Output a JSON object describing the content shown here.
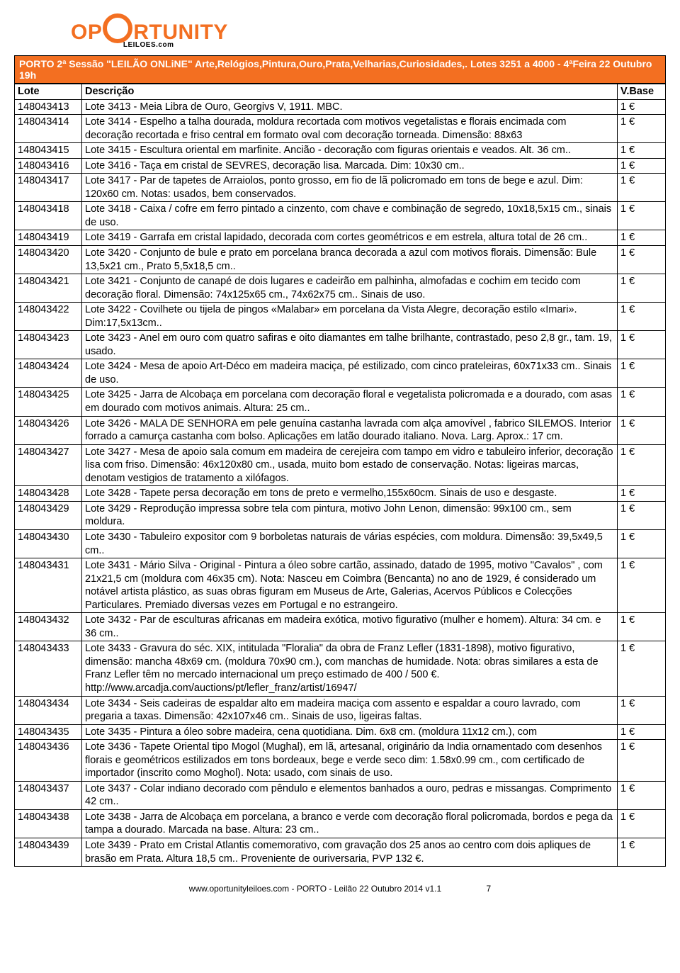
{
  "logo": {
    "part1": "OP",
    "part2": "RTUNITY",
    "sub": "LEILOES.com"
  },
  "session": "PORTO 2ª Sessão \"LEILÃO ONLiNE\" Arte,Relógios,Pintura,Ouro,Prata,Velharias,Curiosidades,. Lotes 3251 a 4000 - 4ªFeira 22 Outubro 19h",
  "headers": {
    "lote": "Lote",
    "desc": "Descrição",
    "base": "V.Base"
  },
  "rows": [
    {
      "lote": "148043413",
      "desc": "Lote 3413 - Meia Libra de Ouro, Georgivs V, 1911. MBC.",
      "base": "1 €"
    },
    {
      "lote": "148043414",
      "desc": "Lote 3414 - Espelho a talha dourada, moldura recortada com motivos vegetalistas e florais encimada com decoração recortada e friso central em formato oval com decoração torneada. Dimensão: 88x63",
      "base": "1 €"
    },
    {
      "lote": "148043415",
      "desc": "Lote 3415 - Escultura oriental em marfinite. Ancião - decoração com figuras orientais e veados. Alt. 36 cm..",
      "base": "1 €"
    },
    {
      "lote": "148043416",
      "desc": "Lote 3416 - Taça em cristal de SEVRES, decoração lisa. Marcada. Dim: 10x30 cm..",
      "base": "1 €"
    },
    {
      "lote": "148043417",
      "desc": "Lote 3417 - Par de tapetes de Arraiolos, ponto grosso, em fio de lã policromado em tons de bege e azul. Dim: 120x60 cm. Notas: usados, bem conservados.",
      "base": "1 €"
    },
    {
      "lote": "148043418",
      "desc": "Lote 3418 - Caixa / cofre em ferro pintado a cinzento, com chave e combinação de segredo, 10x18,5x15 cm., sinais de uso.",
      "base": "1 €"
    },
    {
      "lote": "148043419",
      "desc": "Lote 3419 - Garrafa em cristal lapidado, decorada com cortes geométricos e em estrela, altura total de 26 cm..",
      "base": "1 €"
    },
    {
      "lote": "148043420",
      "desc": "Lote 3420 - Conjunto de bule e prato em porcelana branca decorada a azul com motivos florais. Dimensão: Bule 13,5x21 cm., Prato 5,5x18,5 cm..",
      "base": "1 €"
    },
    {
      "lote": "148043421",
      "desc": "Lote 3421 - Conjunto de canapé de dois lugares e cadeirão em palhinha, almofadas e cochim em tecido com decoração floral. Dimensão: 74x125x65 cm., 74x62x75 cm.. Sinais de uso.",
      "base": "1 €"
    },
    {
      "lote": "148043422",
      "desc": "Lote 3422 - Covilhete ou tijela de pingos «Malabar» em porcelana da Vista Alegre, decoração estilo «Imari». Dim:17,5x13cm..",
      "base": "1 €"
    },
    {
      "lote": "148043423",
      "desc": "Lote 3423 - Anel em ouro com quatro safiras e oito diamantes em talhe brilhante, contrastado, peso 2,8 gr., tam. 19, usado.",
      "base": "1 €"
    },
    {
      "lote": "148043424",
      "desc": "Lote 3424 - Mesa de apoio Art-Déco em madeira maciça, pé estilizado, com cinco prateleiras, 60x71x33 cm.. Sinais de uso.",
      "base": "1 €"
    },
    {
      "lote": "148043425",
      "desc": "Lote 3425 - Jarra de Alcobaça em porcelana com decoração  floral e vegetalista policromada e a dourado, com asas em dourado com motivos animais. Altura: 25 cm..",
      "base": "1 €"
    },
    {
      "lote": "148043426",
      "desc": "Lote 3426 - MALA DE SENHORA em pele genuína castanha lavrada com alça amovível , fabrico SILEMOS. Interior forrado a camurça castanha com bolso. Aplicações em latão dourado italiano. Nova. Larg. Aprox.: 17 cm.",
      "base": "1 €"
    },
    {
      "lote": "148043427",
      "desc": "Lote 3427 - Mesa de apoio sala comum em madeira de cerejeira com tampo em vidro e tabuleiro inferior, decoração lisa com friso. Dimensão: 46x120x80 cm., usada, muito bom estado de conservação.  Notas: ligeiras marcas, denotam vestigios de tratamento a xilófagos.",
      "base": "1 €"
    },
    {
      "lote": "148043428",
      "desc": "Lote 3428 - Tapete persa decoração em tons de preto e vermelho,155x60cm. Sinais de uso e desgaste.",
      "base": "1 €"
    },
    {
      "lote": "148043429",
      "desc": "Lote 3429 - Reprodução impressa sobre tela com pintura, motivo John Lenon, dimensão: 99x100 cm., sem moldura.",
      "base": "1 €"
    },
    {
      "lote": "148043430",
      "desc": "Lote 3430 - Tabuleiro expositor com 9 borboletas naturais de várias espécies, com moldura. Dimensão: 39,5x49,5 cm..",
      "base": "1 €"
    },
    {
      "lote": "148043431",
      "desc": "Lote 3431 - Mário Silva - Original - Pintura a óleo sobre cartão, assinado, datado de 1995, motivo \"Cavalos\" , com 21x21,5 cm (moldura com 46x35 cm). Nota: Nasceu em Coimbra (Bencanta) no ano de 1929, é considerado um notável artista plástico, as suas obras figuram em Museus de Arte, Galerias, Acervos Públicos e Colecções Particulares. Premiado diversas vezes em Portugal e no estrangeiro.",
      "base": "1 €"
    },
    {
      "lote": "148043432",
      "desc": "Lote 3432 - Par de esculturas africanas em madeira exótica, motivo figurativo (mulher e homem). Altura: 34 cm. e 36 cm..",
      "base": "1 €"
    },
    {
      "lote": "148043433",
      "desc": "Lote 3433 - Gravura do séc. XIX, intitulada \"Floralia\" da obra de Franz Lefler (1831-1898), motivo figurativo, dimensão: mancha 48x69 cm. (moldura 70x90 cm.), com manchas de humidade. Nota: obras similares a esta de Franz Lefler têm no mercado internacional um preço estimado de 400 / 500 €. http://www.arcadja.com/auctions/pt/lefler_franz/artist/16947/",
      "base": "1 €"
    },
    {
      "lote": "148043434",
      "desc": "Lote 3434 - Seis cadeiras de espaldar alto em madeira maciça com assento e espaldar a couro lavrado, com pregaria a taxas. Dimensão: 42x107x46 cm.. Sinais de uso, ligeiras faltas.",
      "base": "1 €"
    },
    {
      "lote": "148043435",
      "desc": "Lote 3435 - Pintura a óleo sobre madeira, cena quotidiana. Dim. 6x8 cm. (moldura 11x12 cm.), com",
      "base": "1 €"
    },
    {
      "lote": "148043436",
      "desc": "Lote 3436 - Tapete Oriental tipo Mogol (Mughal), em lã, artesanal, originário da India ornamentado com desenhos florais e geométricos  estilizados em tons bordeaux, bege e verde seco  dim: 1.58x0.99 cm., com certificado de importador (inscrito como Moghol). Nota: usado, com sinais de uso.",
      "base": "1 €"
    },
    {
      "lote": "148043437",
      "desc": "Lote 3437 - Colar indiano decorado com pêndulo e elementos banhados a ouro,  pedras e missangas. Comprimento 42 cm..",
      "base": "1 €"
    },
    {
      "lote": "148043438",
      "desc": "Lote 3438 - Jarra de Alcobaça em porcelana, a branco e verde com decoração floral policromada, bordos e pega da tampa a dourado. Marcada na base. Altura: 23 cm..",
      "base": "1 €"
    },
    {
      "lote": "148043439",
      "desc": "Lote 3439 - Prato em Cristal Atlantis comemorativo, com gravação dos 25 anos ao centro com dois apliques de brasão em Prata. Altura 18,5 cm.. Proveniente de ouriversaria, PVP 132 €.",
      "base": "1 €"
    }
  ],
  "footer": {
    "text": "www.oportunityleiloes.com  -  PORTO  -  Leilão 22 Outubro 2014 v1.1",
    "page": "7"
  },
  "colors": {
    "brand": "#f36f21",
    "text": "#000000",
    "bg": "#ffffff"
  }
}
